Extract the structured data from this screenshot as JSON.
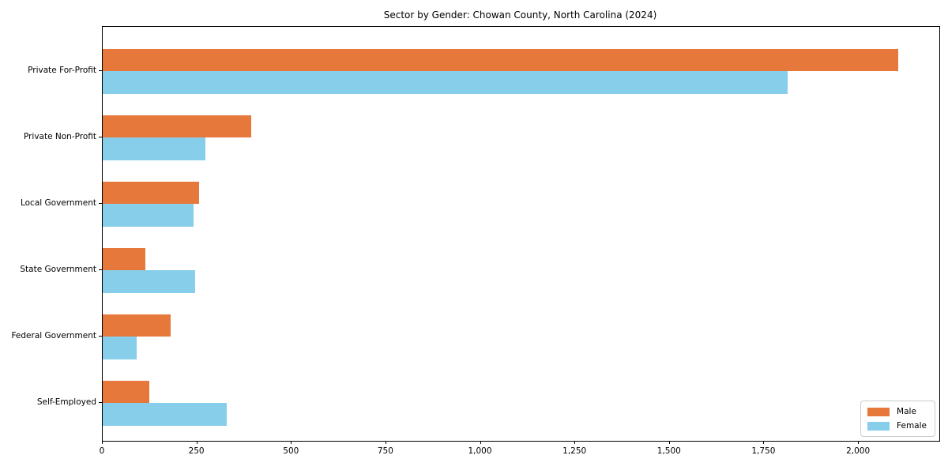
{
  "chart_data": {
    "type": "bar",
    "orientation": "horizontal",
    "title": "Sector by Gender: Chowan County, North Carolina (2024)",
    "categories": [
      "Private For-Profit",
      "Private Non-Profit",
      "Local Government",
      "State Government",
      "Federal Government",
      "Self-Employed"
    ],
    "series": [
      {
        "name": "Male",
        "color": "#e6783c",
        "values": [
          2105,
          392,
          255,
          112,
          180,
          123
        ]
      },
      {
        "name": "Female",
        "color": "#87ceeb",
        "values": [
          1812,
          272,
          240,
          245,
          90,
          327
        ]
      }
    ],
    "xlim": [
      0,
      2213
    ],
    "xticks": [
      0,
      250,
      500,
      750,
      1000,
      1250,
      1500,
      1750,
      2000
    ],
    "xtick_labels": [
      "0",
      "250",
      "500",
      "750",
      "1,000",
      "1,250",
      "1,500",
      "1,750",
      "2,000"
    ],
    "xlabel": "",
    "ylabel": "",
    "grid": false,
    "legend_position": "lower right"
  }
}
